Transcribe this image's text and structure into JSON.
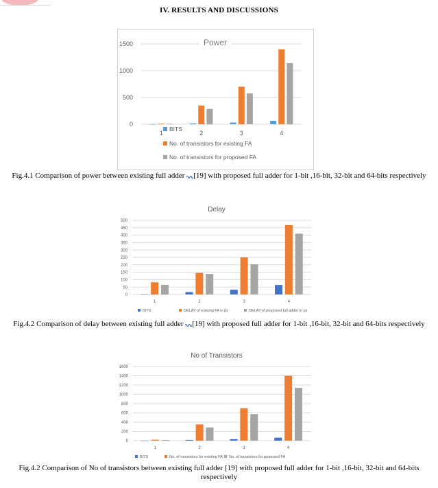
{
  "section_heading": "IV.    RESULTS AND DISCUSSIONS",
  "colors": {
    "bits": "#5b9bd5",
    "bits_dark": "#4472c4",
    "existing": "#ed7d31",
    "proposed": "#a5a5a5",
    "grid": "#d9d9d9",
    "axis_text": "#595959"
  },
  "captions": {
    "fig1_before": "Fig.4.1 Comparison of power between existing full adder ",
    "fig1_after": "[19] with proposed full adder for 1-bit ,16-bit, 32-bit and 64-bits respectively",
    "fig2_before": "Fig.4.2 Comparison of delay between existing full adder ",
    "fig2_after": "[19] with proposed full adder for 1-bit ,16-bit, 32-bit and 64-bits respectively",
    "fig3": "Fig.4.2 Comparison of No of transistors between existing full adder [19] with proposed full adder for 1-bit ,16-bit, 32-bit and 64-bits respectively"
  },
  "chart_data": [
    {
      "type": "bar",
      "title": "Power",
      "categories": [
        "1",
        "2",
        "3",
        "4"
      ],
      "ylim": [
        0,
        1500
      ],
      "yticks": [
        "0",
        "500",
        "1000",
        "1500"
      ],
      "grid": true,
      "legend_position": "bottom",
      "series": [
        {
          "name": "BITS",
          "values": [
            1,
            16,
            32,
            64
          ]
        },
        {
          "name": "No. of transistors for existing FA",
          "values": [
            10,
            350,
            700,
            1400
          ]
        },
        {
          "name": "No. of transistors for proposed FA",
          "values": [
            8,
            285,
            575,
            1140
          ]
        }
      ]
    },
    {
      "type": "bar",
      "title": "Delay",
      "categories": [
        "1",
        "2",
        "3",
        "4"
      ],
      "ylim": [
        0,
        500
      ],
      "yticks": [
        "0",
        "50",
        "100",
        "150",
        "200",
        "250",
        "300",
        "350",
        "400",
        "450",
        "500"
      ],
      "grid": true,
      "legend_position": "bottom",
      "series": [
        {
          "name": "BITS",
          "values": [
            1,
            16,
            32,
            64
          ]
        },
        {
          "name": "DELAY of existing FA in ps",
          "values": [
            82,
            145,
            250,
            468
          ]
        },
        {
          "name": "DELAY of proposed full adder in ps",
          "values": [
            65,
            138,
            203,
            410
          ]
        }
      ]
    },
    {
      "type": "bar",
      "title": "No of Transistors",
      "categories": [
        "1",
        "2",
        "3",
        "4"
      ],
      "ylim": [
        0,
        1600
      ],
      "yticks": [
        "0",
        "200",
        "400",
        "600",
        "800",
        "1000",
        "1200",
        "1400",
        "1600"
      ],
      "grid": true,
      "legend_position": "bottom",
      "series": [
        {
          "name": "BITS",
          "values": [
            1,
            16,
            32,
            64
          ]
        },
        {
          "name": "No. of transistors for existing FA",
          "values": [
            20,
            350,
            700,
            1400
          ]
        },
        {
          "name": "No. of transistors for proposed FA",
          "values": [
            15,
            285,
            575,
            1140
          ]
        }
      ]
    }
  ]
}
